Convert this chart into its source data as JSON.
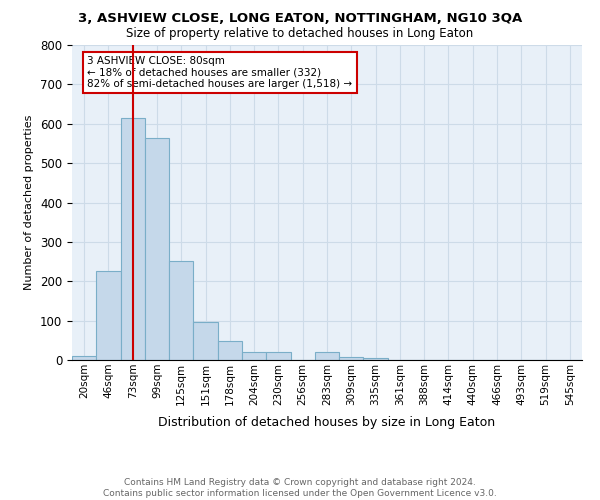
{
  "title1": "3, ASHVIEW CLOSE, LONG EATON, NOTTINGHAM, NG10 3QA",
  "title2": "Size of property relative to detached houses in Long Eaton",
  "xlabel": "Distribution of detached houses by size in Long Eaton",
  "ylabel": "Number of detached properties",
  "categories": [
    "20sqm",
    "46sqm",
    "73sqm",
    "99sqm",
    "125sqm",
    "151sqm",
    "178sqm",
    "204sqm",
    "230sqm",
    "256sqm",
    "283sqm",
    "309sqm",
    "335sqm",
    "361sqm",
    "388sqm",
    "414sqm",
    "440sqm",
    "466sqm",
    "493sqm",
    "519sqm",
    "545sqm"
  ],
  "bar_values": [
    10,
    225,
    615,
    565,
    252,
    97,
    48,
    20,
    20,
    0,
    20,
    7,
    5,
    0,
    0,
    0,
    0,
    0,
    0,
    0,
    0
  ],
  "bar_color": "#c5d8ea",
  "bar_edge_color": "#7aaec8",
  "vline_color": "#cc0000",
  "vline_category_idx": 2,
  "ylim": [
    0,
    800
  ],
  "yticks": [
    0,
    100,
    200,
    300,
    400,
    500,
    600,
    700,
    800
  ],
  "annotation_text": "3 ASHVIEW CLOSE: 80sqm\n← 18% of detached houses are smaller (332)\n82% of semi-detached houses are larger (1,518) →",
  "annotation_box_color": "#cc0000",
  "footer_line1": "Contains HM Land Registry data © Crown copyright and database right 2024.",
  "footer_line2": "Contains public sector information licensed under the Open Government Licence v3.0.",
  "grid_color": "#cddbe8",
  "background_color": "#e8f0f8",
  "title1_fontsize": 9.5,
  "title2_fontsize": 8.5,
  "xlabel_fontsize": 9.0,
  "ylabel_fontsize": 8.0,
  "tick_fontsize": 7.5,
  "footer_fontsize": 6.5
}
